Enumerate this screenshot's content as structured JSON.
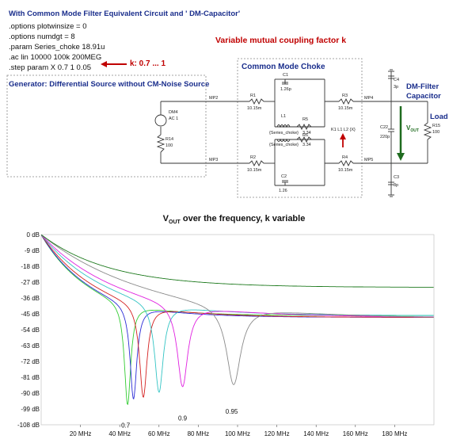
{
  "header": {
    "title": "With Common Mode Filter Equivalent Circuit and ' DM-Capacitor'",
    "directives": [
      ".options plotwinsize = 0",
      ".options numdgt = 8",
      ".param Series_choke 18.91u",
      ".ac lin 10000 100k 200MEG",
      ".step param X 0.7  1  0.05"
    ]
  },
  "labels": {
    "variable_coupling": "Variable mutual coupling factor k",
    "k_range": "k: 0.7 ... 1",
    "generator": "Generator: Differential Source without CM-Noise Source",
    "common_mode_choke": "Common Mode Choke",
    "dm_filter": "DM-Filter Capacitor",
    "load": "Load"
  },
  "schematic": {
    "nets": {
      "mp2": "MP2",
      "mp3": "MP3",
      "mp4": "MP4",
      "mp5": "MP5"
    },
    "source": {
      "ref": "DM4",
      "value": "AC 1"
    },
    "r14": {
      "ref": "R14",
      "value": "100"
    },
    "r1": {
      "ref": "R1",
      "value": "10.15m"
    },
    "r2": {
      "ref": "R2",
      "value": "10.15m"
    },
    "r3": {
      "ref": "R3",
      "value": "10.15m"
    },
    "r4": {
      "ref": "R4",
      "value": "10.15m"
    },
    "r5": {
      "ref": "R5",
      "value": "3.34"
    },
    "r6": {
      "ref": "R6",
      "value": "3.34"
    },
    "r15": {
      "ref": "R15",
      "value": "100"
    },
    "c1": {
      "ref": "C1",
      "value": "1.26p"
    },
    "c2": {
      "ref": "C2",
      "value": "1.26"
    },
    "c3": {
      "ref": "C3",
      "value": "3p"
    },
    "c4": {
      "ref": "C4",
      "value": "3p"
    },
    "c22": {
      "ref": "C22",
      "value": "220p"
    },
    "l1": {
      "ref": "L1",
      "value": "{Series_choke}"
    },
    "l2": {
      "ref": "L2",
      "value": "{Series_choke}"
    },
    "coupling": "K1 L1 L2 {X}",
    "vout": "V",
    "vout_sub": "OUT"
  },
  "colors": {
    "title_blue": "#1a2e8c",
    "accent_red": "#c00000",
    "vout_arrow": "#1f6b1f"
  },
  "chart_data": {
    "type": "line",
    "title": "V",
    "title_sub": "OUT",
    "title_rest": " over the frequency, k variable",
    "x_unit": "MHz",
    "xlim": [
      0,
      200
    ],
    "ylim": [
      -108,
      0
    ],
    "y_ticks": [
      0,
      -9,
      -18,
      -27,
      -36,
      -45,
      -54,
      -63,
      -72,
      -81,
      -90,
      -99,
      -108
    ],
    "y_tick_labels": [
      "0 dB",
      "-9 dB",
      "-18 dB",
      "-27 dB",
      "-36 dB",
      "-45 dB",
      "-54 dB",
      "-63 dB",
      "-72 dB",
      "-81 dB",
      "-90 dB",
      "-99 dB",
      "-108 dB"
    ],
    "x_ticks": [
      20,
      40,
      60,
      80,
      100,
      120,
      140,
      160,
      180
    ],
    "x_tick_labels": [
      "20 MHz",
      "40 MHz",
      "60 MHz",
      "80 MHz",
      "100 MHz",
      "120 MHz",
      "140 MHz",
      "160 MHz",
      "180 MHz"
    ],
    "series": [
      {
        "color": "#33cc33",
        "notch_mhz": 44,
        "notch_db": -104,
        "high_db": -46
      },
      {
        "color": "#2b2bd6",
        "notch_mhz": 47,
        "notch_db": -101,
        "high_db": -47
      },
      {
        "color": "#d42020",
        "notch_mhz": 52,
        "notch_db": -100,
        "high_db": -47
      },
      {
        "color": "#33c4c4",
        "notch_mhz": 60,
        "notch_db": -97,
        "high_db": -46
      },
      {
        "color": "#e020e0",
        "notch_mhz": 72,
        "notch_db": -94,
        "high_db": -47
      },
      {
        "color": "#8a8a8a",
        "notch_mhz": 98,
        "notch_db": -93,
        "high_db": -48
      },
      {
        "color": "#1e7a1e",
        "notch_mhz": null,
        "notch_db": null,
        "high_db": -30
      }
    ],
    "annotations": [
      {
        "text": "0.7",
        "x_mhz": 43,
        "y_db": -106
      },
      {
        "text": "0.9",
        "x_mhz": 72,
        "y_db": -102
      },
      {
        "text": "0.95",
        "x_mhz": 97,
        "y_db": -98
      }
    ]
  }
}
